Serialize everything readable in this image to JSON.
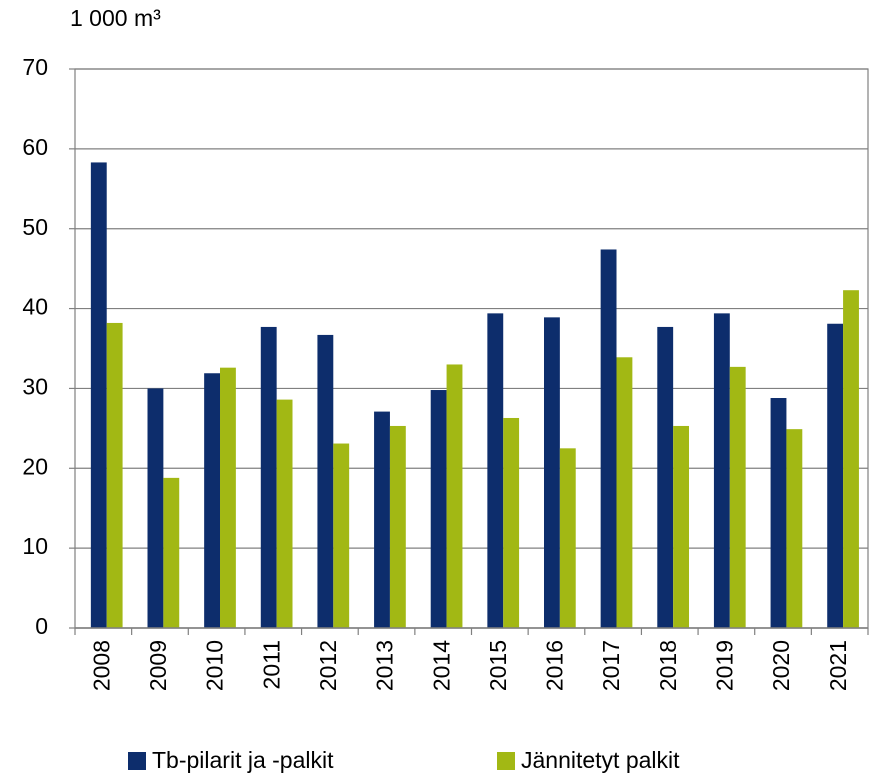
{
  "chart_data": {
    "type": "bar",
    "axis_label": "1 000 m³",
    "categories": [
      "2008",
      "2009",
      "2010",
      "2011",
      "2012",
      "2013",
      "2014",
      "2015",
      "2016",
      "2017",
      "2018",
      "2019",
      "2020",
      "2021"
    ],
    "series": [
      {
        "name": "Tb-pilarit ja -palkit",
        "color": "#0d2d6c",
        "values": [
          58.3,
          30.0,
          31.9,
          37.7,
          36.7,
          27.1,
          29.8,
          39.4,
          38.9,
          47.4,
          37.7,
          39.4,
          28.8,
          38.1
        ]
      },
      {
        "name": "Jännitetyt palkit",
        "color": "#a2b814",
        "values": [
          38.2,
          18.8,
          32.6,
          28.6,
          23.1,
          25.3,
          33.0,
          26.3,
          22.5,
          33.9,
          25.3,
          32.7,
          24.9,
          42.3
        ]
      }
    ],
    "ylim": [
      0,
      70
    ],
    "yticks": [
      0,
      10,
      20,
      30,
      40,
      50,
      60,
      70
    ],
    "grid": true,
    "legend": "bottom"
  }
}
